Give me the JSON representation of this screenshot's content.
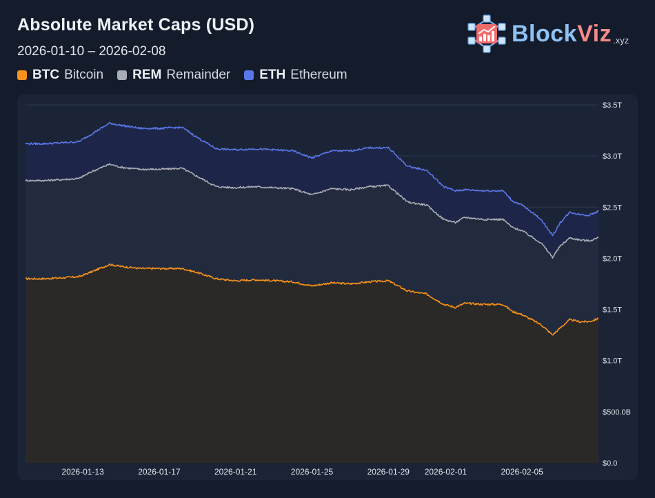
{
  "header": {
    "title": "Absolute Market Caps (USD)",
    "date_range": "2026-01-10 – 2026-02-08"
  },
  "brand": {
    "name_part1": "Block",
    "name_part2": "Viz",
    "tld": ".xyz"
  },
  "legend": [
    {
      "ticker": "BTC",
      "name": "Bitcoin",
      "color": "#f7931a"
    },
    {
      "ticker": "REM",
      "name": "Remainder",
      "color": "#a9adb6"
    },
    {
      "ticker": "ETH",
      "name": "Ethereum",
      "color": "#5b76e8"
    }
  ],
  "chart_data": {
    "type": "area",
    "stacked": true,
    "title": "Absolute Market Caps (USD)",
    "xlabel": "",
    "ylabel": "",
    "ylim": [
      0,
      3.5
    ],
    "y_unit": "trillion USD",
    "y_ticks": [
      {
        "value": 3.5,
        "label": "$3.5T"
      },
      {
        "value": 3.0,
        "label": "$3.0T"
      },
      {
        "value": 2.5,
        "label": "$2.5T"
      },
      {
        "value": 2.0,
        "label": "$2.0T"
      },
      {
        "value": 1.5,
        "label": "$1.5T"
      },
      {
        "value": 1.0,
        "label": "$1.0T"
      },
      {
        "value": 0.5,
        "label": "$500.0B"
      },
      {
        "value": 0.0,
        "label": "$0.0"
      }
    ],
    "x_ticks": [
      {
        "day": 3,
        "label": "2026-01-13"
      },
      {
        "day": 7,
        "label": "2026-01-17"
      },
      {
        "day": 11,
        "label": "2026-01-21"
      },
      {
        "day": 15,
        "label": "2026-01-25"
      },
      {
        "day": 19,
        "label": "2026-01-29"
      },
      {
        "day": 22,
        "label": "2026-02-01"
      },
      {
        "day": 26,
        "label": "2026-02-05"
      }
    ],
    "x_range_days": [
      0,
      30
    ],
    "legend_position": "top-left",
    "series": [
      {
        "name": "BTC",
        "color": "#f7931a",
        "x": [
          0,
          1,
          2,
          2.8,
          3.5,
          4.4,
          5,
          6,
          7,
          8.2,
          9,
          10,
          11,
          12,
          13,
          14,
          15,
          16,
          17,
          18,
          19,
          20,
          21,
          21.9,
          22.5,
          23,
          24,
          25,
          25.5,
          26,
          27,
          27.6,
          28,
          28.5,
          29,
          29.5,
          30
        ],
        "cumulative": [
          1.8,
          1.8,
          1.81,
          1.82,
          1.87,
          1.94,
          1.92,
          1.9,
          1.9,
          1.9,
          1.86,
          1.8,
          1.78,
          1.79,
          1.78,
          1.77,
          1.73,
          1.76,
          1.75,
          1.77,
          1.78,
          1.68,
          1.65,
          1.55,
          1.52,
          1.56,
          1.55,
          1.55,
          1.48,
          1.45,
          1.35,
          1.25,
          1.32,
          1.4,
          1.38,
          1.38,
          1.41
        ]
      },
      {
        "name": "REM",
        "color": "#a9adb6",
        "x": [
          0,
          1,
          2,
          2.8,
          3.5,
          4.4,
          5,
          6,
          7,
          8.2,
          9,
          10,
          11,
          12,
          13,
          14,
          15,
          16,
          17,
          18,
          19,
          20,
          21,
          21.9,
          22.5,
          23,
          24,
          25,
          25.5,
          26,
          27,
          27.6,
          28,
          28.5,
          29,
          29.5,
          30
        ],
        "cumulative": [
          2.76,
          2.76,
          2.77,
          2.78,
          2.85,
          2.92,
          2.89,
          2.87,
          2.87,
          2.88,
          2.8,
          2.7,
          2.69,
          2.7,
          2.69,
          2.68,
          2.62,
          2.68,
          2.67,
          2.7,
          2.71,
          2.55,
          2.52,
          2.38,
          2.35,
          2.4,
          2.38,
          2.38,
          2.3,
          2.27,
          2.15,
          2.01,
          2.12,
          2.2,
          2.18,
          2.17,
          2.2
        ]
      },
      {
        "name": "ETH",
        "color": "#5b76e8",
        "x": [
          0,
          1,
          2,
          2.8,
          3.5,
          4.4,
          5,
          6,
          7,
          8.2,
          9,
          10,
          11,
          12,
          13,
          14,
          15,
          16,
          17,
          18,
          19,
          20,
          21,
          21.9,
          22.5,
          23,
          24,
          25,
          25.5,
          26,
          27,
          27.6,
          28,
          28.5,
          29,
          29.5,
          30
        ],
        "cumulative": [
          3.12,
          3.12,
          3.13,
          3.14,
          3.22,
          3.32,
          3.3,
          3.27,
          3.27,
          3.28,
          3.18,
          3.07,
          3.06,
          3.07,
          3.06,
          3.05,
          2.98,
          3.05,
          3.05,
          3.08,
          3.08,
          2.9,
          2.86,
          2.7,
          2.66,
          2.67,
          2.66,
          2.66,
          2.56,
          2.52,
          2.38,
          2.22,
          2.35,
          2.45,
          2.43,
          2.42,
          2.46
        ]
      }
    ]
  }
}
